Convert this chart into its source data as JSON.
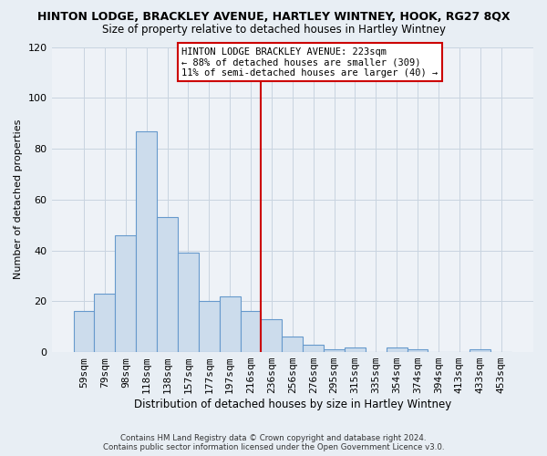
{
  "title": "HINTON LODGE, BRACKLEY AVENUE, HARTLEY WINTNEY, HOOK, RG27 8QX",
  "subtitle": "Size of property relative to detached houses in Hartley Wintney",
  "xlabel": "Distribution of detached houses by size in Hartley Wintney",
  "ylabel": "Number of detached properties",
  "bar_labels": [
    "59sqm",
    "79sqm",
    "98sqm",
    "118sqm",
    "138sqm",
    "157sqm",
    "177sqm",
    "197sqm",
    "216sqm",
    "236sqm",
    "256sqm",
    "276sqm",
    "295sqm",
    "315sqm",
    "335sqm",
    "354sqm",
    "374sqm",
    "394sqm",
    "413sqm",
    "433sqm",
    "453sqm"
  ],
  "bar_values": [
    16,
    23,
    46,
    87,
    53,
    39,
    20,
    22,
    16,
    13,
    6,
    3,
    1,
    2,
    0,
    2,
    1,
    0,
    0,
    1,
    0
  ],
  "bar_color": "#ccdcec",
  "bar_edge_color": "#6699cc",
  "vline_x": 8.5,
  "vline_color": "#cc0000",
  "annotation_line1": "HINTON LODGE BRACKLEY AVENUE: 223sqm",
  "annotation_line2": "← 88% of detached houses are smaller (309)",
  "annotation_line3": "11% of semi-detached houses are larger (40) →",
  "ylim": [
    0,
    120
  ],
  "yticks": [
    0,
    20,
    40,
    60,
    80,
    100,
    120
  ],
  "footer_line1": "Contains HM Land Registry data © Crown copyright and database right 2024.",
  "footer_line2": "Contains public sector information licensed under the Open Government Licence v3.0.",
  "bg_color": "#e8eef4",
  "plot_bg_color": "#eef2f7",
  "grid_color": "#c8d4e0"
}
